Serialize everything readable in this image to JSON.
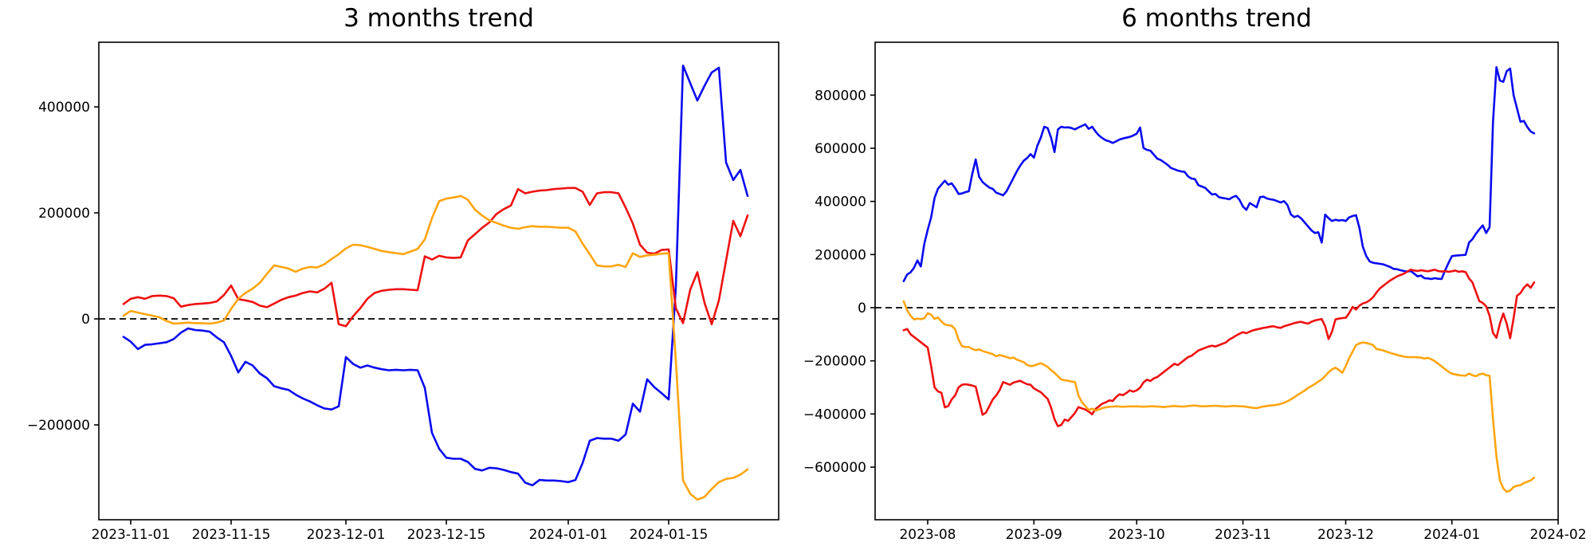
{
  "figure": {
    "background": "#ffffff",
    "text_color": "#000000"
  },
  "chart_data": [
    {
      "type": "line",
      "title": "3 months trend",
      "grid": false,
      "legend": null,
      "zero_line": {
        "style": "dashed",
        "color": "#000000"
      },
      "x_axis": {
        "domain": [
          "2023-10-27T13:20:00",
          "2024-01-30T08:00:00"
        ],
        "ticks": [
          "2023-11-01",
          "2023-11-15",
          "2023-12-01",
          "2023-12-15",
          "2024-01-01",
          "2024-01-15"
        ],
        "tick_labels": [
          "2023-11-01",
          "2023-11-15",
          "2023-12-01",
          "2023-12-15",
          "2024-01-01",
          "2024-01-15"
        ]
      },
      "y_axis": {
        "domain": [
          -379000,
          522000
        ],
        "ticks": [
          400000,
          200000,
          0,
          -200000
        ],
        "tick_labels": [
          "400000",
          "200000",
          "0",
          "−200000"
        ]
      },
      "series": [
        {
          "name": "blue",
          "color": "#0a0af0",
          "start_date": "2023-10-31",
          "interval_days": 1,
          "values": [
            -34000,
            -43000,
            -57000,
            -49000,
            -48000,
            -46000,
            -44000,
            -38000,
            -26000,
            -18000,
            -21000,
            -22000,
            -24000,
            -35000,
            -44000,
            -70000,
            -101000,
            -81000,
            -88000,
            -103000,
            -112000,
            -127000,
            -131000,
            -134000,
            -143000,
            -150000,
            -156000,
            -163000,
            -169000,
            -171000,
            -165000,
            -72000,
            -85000,
            -92000,
            -88000,
            -92000,
            -95000,
            -97000,
            -96000,
            -97000,
            -96000,
            -97000,
            -130000,
            -215000,
            -245000,
            -262000,
            -264000,
            -264000,
            -270000,
            -283000,
            -286000,
            -281000,
            -282000,
            -285000,
            -289000,
            -292000,
            -309000,
            -314000,
            -304000,
            -305000,
            -305000,
            -306000,
            -308000,
            -304000,
            -272000,
            -230000,
            -225000,
            -226000,
            -226000,
            -230000,
            -218000,
            -160000,
            -175000,
            -114000,
            -129000,
            -140000,
            -152000,
            60000,
            478000,
            445000,
            412000,
            440000,
            465000,
            474000,
            295000,
            262000,
            281000,
            232000
          ]
        },
        {
          "name": "red",
          "color": "#ee1111",
          "start_date": "2023-10-31",
          "interval_days": 1,
          "values": [
            28000,
            38000,
            41000,
            38000,
            43000,
            44000,
            43000,
            39000,
            23000,
            26000,
            28000,
            29000,
            30000,
            33000,
            45000,
            63000,
            37000,
            35000,
            32000,
            25000,
            22000,
            29000,
            36000,
            41000,
            44000,
            49000,
            52000,
            50000,
            57000,
            68000,
            -10000,
            -14000,
            5000,
            20000,
            38000,
            49000,
            53000,
            55000,
            56000,
            56000,
            55000,
            54000,
            118000,
            112000,
            119000,
            116000,
            115000,
            116000,
            148000,
            160000,
            172000,
            182000,
            198000,
            207000,
            214000,
            245000,
            237000,
            240000,
            242000,
            243000,
            245000,
            246000,
            247000,
            247000,
            240000,
            215000,
            237000,
            239000,
            239000,
            237000,
            210000,
            180000,
            140000,
            125000,
            123000,
            130000,
            131000,
            20000,
            -8000,
            55000,
            88000,
            30000,
            -10000,
            35000,
            110000,
            185000,
            156000,
            195000
          ]
        },
        {
          "name": "orange",
          "color": "#ffa510",
          "start_date": "2023-10-31",
          "interval_days": 1,
          "values": [
            6000,
            15000,
            12000,
            9000,
            6000,
            3000,
            -4000,
            -9000,
            -8000,
            -7000,
            -8000,
            -8000,
            -9000,
            -7000,
            -3000,
            19000,
            38000,
            49000,
            57000,
            68000,
            85000,
            101000,
            98000,
            95000,
            89000,
            95000,
            98000,
            97000,
            103000,
            113000,
            122000,
            133000,
            140000,
            139000,
            136000,
            132000,
            128000,
            126000,
            124000,
            122000,
            127000,
            132000,
            150000,
            190000,
            222000,
            227000,
            229000,
            232000,
            225000,
            206000,
            195000,
            186000,
            181000,
            176000,
            172000,
            170000,
            173000,
            175000,
            174000,
            174000,
            173000,
            172000,
            172000,
            165000,
            142000,
            122000,
            101000,
            99000,
            99000,
            102000,
            98000,
            124000,
            117000,
            120000,
            121000,
            123000,
            124000,
            -80000,
            -305000,
            -330000,
            -341000,
            -336000,
            -321000,
            -308000,
            -302000,
            -300000,
            -294000,
            -284000
          ]
        }
      ]
    },
    {
      "type": "line",
      "title": "6 months trend",
      "grid": false,
      "legend": null,
      "zero_line": {
        "style": "dashed",
        "color": "#000000"
      },
      "x_axis": {
        "domain": [
          "2023-07-16T15:36:00",
          "2024-02-01T00:00:00"
        ],
        "ticks": [
          "2023-08-01",
          "2023-09-01",
          "2023-10-01",
          "2023-11-01",
          "2023-12-01",
          "2024-01-01",
          "2024-02-01"
        ],
        "tick_labels": [
          "2023-08",
          "2023-09",
          "2023-10",
          "2023-11",
          "2023-12",
          "2024-01",
          "2024-02"
        ]
      },
      "y_axis": {
        "domain": [
          -798000,
          999000
        ],
        "ticks": [
          800000,
          600000,
          400000,
          200000,
          0,
          -200000,
          -400000,
          -600000
        ],
        "tick_labels": [
          "800000",
          "600000",
          "400000",
          "200000",
          "0",
          "−200000",
          "−400000",
          "−600000"
        ]
      },
      "series": [
        {
          "name": "blue",
          "color": "#0a0af0",
          "start_date": "2023-07-25",
          "interval_days": 1,
          "values": [
            100000,
            125000,
            133000,
            150000,
            178000,
            155000,
            240000,
            293000,
            340000,
            413000,
            448000,
            463000,
            478000,
            463000,
            468000,
            450000,
            428000,
            430000,
            435000,
            438000,
            503000,
            558000,
            493000,
            473000,
            462000,
            452000,
            447000,
            433000,
            428000,
            423000,
            438000,
            463000,
            488000,
            513000,
            535000,
            553000,
            563000,
            578000,
            565000,
            610000,
            640000,
            681000,
            676000,
            640000,
            586000,
            671000,
            681000,
            678000,
            679000,
            676000,
            671000,
            678000,
            684000,
            690000,
            673000,
            681000,
            663000,
            648000,
            638000,
            630000,
            626000,
            620000,
            626000,
            633000,
            637000,
            640000,
            643000,
            648000,
            655000,
            678000,
            601000,
            594000,
            591000,
            576000,
            561000,
            556000,
            547000,
            538000,
            526000,
            521000,
            516000,
            513000,
            511000,
            494000,
            486000,
            484000,
            461000,
            456000,
            451000,
            438000,
            426000,
            428000,
            416000,
            413000,
            411000,
            408000,
            416000,
            421000,
            406000,
            381000,
            368000,
            394000,
            386000,
            378000,
            416000,
            418000,
            411000,
            408000,
            406000,
            401000,
            396000,
            401000,
            386000,
            351000,
            341000,
            346000,
            336000,
            321000,
            306000,
            291000,
            281000,
            284000,
            245000,
            350000,
            337000,
            326000,
            331000,
            328000,
            330000,
            326000,
            340000,
            345000,
            348000,
            300000,
            229000,
            194000,
            174000,
            169000,
            167000,
            165000,
            163000,
            158000,
            153000,
            146000,
            145000,
            141000,
            138000,
            136000,
            138000,
            128000,
            118000,
            121000,
            111000,
            110000,
            108000,
            111000,
            109000,
            108000,
            140000,
            168000,
            194000,
            196000,
            197000,
            198000,
            199000,
            245000,
            258000,
            278000,
            295000,
            310000,
            281000,
            303000,
            700000,
            905000,
            855000,
            850000,
            890000,
            900000,
            800000,
            750000,
            700000,
            703000,
            680000,
            663000,
            656000
          ]
        },
        {
          "name": "red",
          "color": "#ee1111",
          "start_date": "2023-07-25",
          "interval_days": 1,
          "values": [
            -85000,
            -80000,
            -100000,
            -110000,
            -120000,
            -130000,
            -140000,
            -150000,
            -220000,
            -300000,
            -315000,
            -320000,
            -375000,
            -370000,
            -345000,
            -330000,
            -300000,
            -290000,
            -288000,
            -290000,
            -293000,
            -297000,
            -350000,
            -403000,
            -395000,
            -370000,
            -345000,
            -330000,
            -310000,
            -280000,
            -285000,
            -290000,
            -282000,
            -278000,
            -275000,
            -282000,
            -288000,
            -290000,
            -304000,
            -311000,
            -318000,
            -331000,
            -343000,
            -376000,
            -420000,
            -446000,
            -441000,
            -421000,
            -426000,
            -411000,
            -396000,
            -374000,
            -379000,
            -383000,
            -391000,
            -401000,
            -381000,
            -371000,
            -361000,
            -356000,
            -349000,
            -351000,
            -336000,
            -326000,
            -329000,
            -321000,
            -311000,
            -316000,
            -311000,
            -301000,
            -281000,
            -271000,
            -276000,
            -266000,
            -261000,
            -251000,
            -241000,
            -231000,
            -221000,
            -211000,
            -216000,
            -206000,
            -196000,
            -186000,
            -181000,
            -171000,
            -161000,
            -156000,
            -151000,
            -146000,
            -143000,
            -146000,
            -141000,
            -136000,
            -131000,
            -120000,
            -113000,
            -105000,
            -98000,
            -92000,
            -96000,
            -90000,
            -85000,
            -82000,
            -79000,
            -76000,
            -74000,
            -71000,
            -70000,
            -74000,
            -76000,
            -70000,
            -66000,
            -62000,
            -58000,
            -55000,
            -53000,
            -57000,
            -60000,
            -53000,
            -48000,
            -45000,
            -43000,
            -70000,
            -118000,
            -90000,
            -44000,
            -41000,
            -39000,
            -38000,
            -20000,
            3000,
            -7000,
            8000,
            16000,
            20000,
            28000,
            40000,
            58000,
            73000,
            83000,
            93000,
            103000,
            110000,
            118000,
            123000,
            128000,
            136000,
            143000,
            140000,
            138000,
            141000,
            139000,
            137000,
            140000,
            143000,
            138000,
            136000,
            138000,
            135000,
            137000,
            140000,
            135000,
            137000,
            134000,
            110000,
            95000,
            60000,
            25000,
            18000,
            5000,
            -30000,
            -95000,
            -113000,
            -60000,
            -22000,
            -60000,
            -115000,
            -40000,
            45000,
            55000,
            75000,
            88000,
            75000,
            95000
          ]
        },
        {
          "name": "orange",
          "color": "#ffa510",
          "start_date": "2023-07-25",
          "interval_days": 1,
          "values": [
            24000,
            -10000,
            -30000,
            -44000,
            -41000,
            -43000,
            -40000,
            -21000,
            -26000,
            -42000,
            -37000,
            -52000,
            -63000,
            -66000,
            -68000,
            -81000,
            -120000,
            -145000,
            -148000,
            -148000,
            -155000,
            -160000,
            -157000,
            -163000,
            -167000,
            -171000,
            -175000,
            -183000,
            -178000,
            -182000,
            -185000,
            -190000,
            -188000,
            -195000,
            -200000,
            -205000,
            -215000,
            -220000,
            -218000,
            -213000,
            -209000,
            -215000,
            -223000,
            -235000,
            -245000,
            -258000,
            -270000,
            -273000,
            -275000,
            -278000,
            -280000,
            -330000,
            -355000,
            -370000,
            -385000,
            -380000,
            -387000,
            -383000,
            -378000,
            -375000,
            -373000,
            -372000,
            -371000,
            -372000,
            -373000,
            -372000,
            -371000,
            -372000,
            -371000,
            -372000,
            -373000,
            -372000,
            -371000,
            -371000,
            -372000,
            -373000,
            -374000,
            -372000,
            -371000,
            -370000,
            -371000,
            -372000,
            -372000,
            -370000,
            -369000,
            -368000,
            -370000,
            -371000,
            -371000,
            -370000,
            -370000,
            -369000,
            -370000,
            -371000,
            -372000,
            -371000,
            -370000,
            -370000,
            -371000,
            -371000,
            -373000,
            -375000,
            -377000,
            -378000,
            -375000,
            -372000,
            -370000,
            -368000,
            -367000,
            -365000,
            -362000,
            -358000,
            -352000,
            -345000,
            -337000,
            -328000,
            -320000,
            -312000,
            -302000,
            -295000,
            -287000,
            -278000,
            -270000,
            -257000,
            -243000,
            -232000,
            -226000,
            -234000,
            -245000,
            -220000,
            -190000,
            -166000,
            -141000,
            -134000,
            -131000,
            -133000,
            -136000,
            -141000,
            -156000,
            -158000,
            -161000,
            -166000,
            -170000,
            -174000,
            -178000,
            -181000,
            -184000,
            -186000,
            -186000,
            -186000,
            -187000,
            -188000,
            -191000,
            -189000,
            -194000,
            -201000,
            -211000,
            -221000,
            -231000,
            -241000,
            -248000,
            -251000,
            -254000,
            -255000,
            -256000,
            -248000,
            -254000,
            -258000,
            -251000,
            -248000,
            -254000,
            -256000,
            -420000,
            -560000,
            -650000,
            -680000,
            -693000,
            -688000,
            -675000,
            -670000,
            -668000,
            -660000,
            -655000,
            -650000,
            -640000
          ]
        }
      ]
    }
  ]
}
